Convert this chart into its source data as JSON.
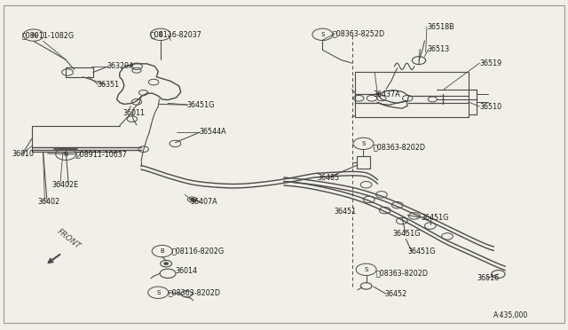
{
  "bg_color": "#f0efe8",
  "line_color": "#4a4a4a",
  "label_color": "#1a1a1a",
  "fs": 5.8,
  "fs_small": 5.2,
  "border_color": "#ccccbb",
  "labels": {
    "N_08911_1082G": [
      "ⓝ08911-1082G",
      0.04,
      0.895
    ],
    "36329A": [
      "36329A",
      0.19,
      0.8
    ],
    "36351": [
      "36351",
      0.17,
      0.745
    ],
    "36011": [
      "36011",
      0.215,
      0.657
    ],
    "36010": [
      "36010",
      0.02,
      0.533
    ],
    "N_08911_10637": [
      "ⓝ08911-10637",
      0.083,
      0.533
    ],
    "36402E": [
      "36402E",
      0.09,
      0.44
    ],
    "36402": [
      "36402",
      0.068,
      0.388
    ],
    "B_08116_82037": [
      "Ⓓ08116-82037",
      0.268,
      0.897
    ],
    "36451G_a": [
      "36451G",
      0.33,
      0.683
    ],
    "36544A": [
      "36544A",
      0.352,
      0.6
    ],
    "36407A": [
      "36407A",
      0.338,
      0.388
    ],
    "B_08116_8202G": [
      "Ⓓ08116-8202G",
      0.245,
      0.235
    ],
    "36014": [
      "36014",
      0.248,
      0.178
    ],
    "S_08363_8202D_bl": [
      "Ⓝ08363-8202D",
      0.235,
      0.112
    ],
    "S_08363_8252D": [
      "Ⓝ08363-8252D",
      0.525,
      0.9
    ],
    "36518B": [
      "36518B",
      0.745,
      0.92
    ],
    "36513": [
      "36513",
      0.738,
      0.852
    ],
    "36519": [
      "36519",
      0.842,
      0.81
    ],
    "36437A": [
      "36437A",
      0.71,
      0.715
    ],
    "36510": [
      "36510",
      0.842,
      0.678
    ],
    "S_08363_8202D_r": [
      "Ⓝ08363-8202D",
      0.648,
      0.553
    ],
    "36485": [
      "36485",
      0.555,
      0.462
    ],
    "36451": [
      "36451",
      0.588,
      0.358
    ],
    "36451G_b": [
      "36451G",
      0.74,
      0.34
    ],
    "36451G_c": [
      "36451G",
      0.692,
      0.29
    ],
    "36451G_d": [
      "36451G",
      0.718,
      0.238
    ],
    "S_08363_8202D_br": [
      "Ⓝ08363-8202D",
      0.642,
      0.172
    ],
    "36452": [
      "36452",
      0.672,
      0.108
    ],
    "36516": [
      "36516",
      0.838,
      0.155
    ],
    "A435": [
      "A·435,000",
      0.87,
      0.042
    ]
  }
}
